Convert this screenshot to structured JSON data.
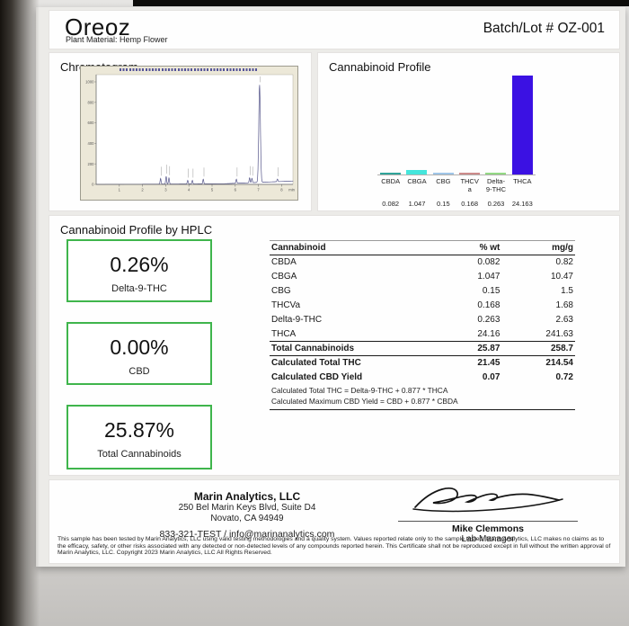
{
  "header": {
    "product": "Oreoz",
    "material": "Plant Material: Hemp Flower",
    "batch": "Batch/Lot # OZ-001"
  },
  "sections": {
    "chromatogram_title": "Chromatogram",
    "profile_title": "Cannabinoid Profile",
    "hplc_title": "Cannabinoid Profile by HPLC"
  },
  "summary_boxes": [
    {
      "value": "0.26%",
      "label": "Delta-9-THC"
    },
    {
      "value": "0.00%",
      "label": "CBD"
    },
    {
      "value": "25.87%",
      "label": "Total Cannabinoids"
    }
  ],
  "table": {
    "headers": [
      "Cannabinoid",
      "% wt",
      "mg/g"
    ],
    "rows": [
      {
        "name": "CBDA",
        "wt": "0.082",
        "mgg": "0.82"
      },
      {
        "name": "CBGA",
        "wt": "1.047",
        "mgg": "10.47"
      },
      {
        "name": "CBG",
        "wt": "0.15",
        "mgg": "1.5"
      },
      {
        "name": "THCVa",
        "wt": "0.168",
        "mgg": "1.68"
      },
      {
        "name": "Delta-9-THC",
        "wt": "0.263",
        "mgg": "2.63"
      },
      {
        "name": "THCA",
        "wt": "24.16",
        "mgg": "241.63"
      }
    ],
    "totals": [
      {
        "name": "Total Cannabinoids",
        "wt": "25.87",
        "mgg": "258.7"
      },
      {
        "name": "Calculated Total THC",
        "wt": "21.45",
        "mgg": "214.54"
      },
      {
        "name": "Calculated CBD Yield",
        "wt": "0.07",
        "mgg": "0.72"
      }
    ],
    "notes": [
      "Calculated Total THC = Delta-9-THC + 0.877 * THCA",
      "Calculated Maximum CBD Yield = CBD + 0.877 * CBDA"
    ]
  },
  "footer": {
    "lab_name": "Marin Analytics, LLC",
    "address1": "250 Bel Marin Keys Blvd, Suite D4",
    "address2": "Novato, CA 94949",
    "contact": "833-321-TEST / info@marinanalytics.com",
    "signer_name": "Mike Clemmons",
    "signer_title": "Lab Manager",
    "disclaimer": "This sample has been tested by Marin Analytics, LLC using valid testing methodologies and a quality system.  Values reported relate only to the sample tested.  Marin Analytics, LLC makes no claims as to the efficacy, safety, or other risks associated with any detected or non-detected levels of any compounds reported herein.  This Certificate shall not be reproduced except in full without the written approval of Marin Analytics, LLC.       Copyright 2023 Marin Analytics, LLC All Rights Reserved."
  },
  "chart_data": [
    {
      "type": "bar",
      "title": "Cannabinoid Profile",
      "categories": [
        "CBDA",
        "CBGA",
        "CBG",
        "THCVa",
        "Delta-9-THC",
        "THCA"
      ],
      "label_lines": [
        [
          "CBDA"
        ],
        [
          "CBGA"
        ],
        [
          "CBG"
        ],
        [
          "THCV",
          "a"
        ],
        [
          "Delta-",
          "9-THC"
        ],
        [
          "THCA"
        ]
      ],
      "values": [
        0.082,
        1.047,
        0.15,
        0.168,
        0.263,
        24.163
      ],
      "value_labels": [
        "0.082",
        "1.047",
        "0.15",
        "0.168",
        "0.263",
        "24.163"
      ],
      "bar_colors": [
        "#2fa49a",
        "#45e6dc",
        "#9fc5e8",
        "#cd8b8b",
        "#93d984",
        "#3b11e3"
      ],
      "ylim": [
        0,
        24.163
      ],
      "grid": false,
      "legend": false
    },
    {
      "type": "line",
      "title": "Chromatogram (HPLC trace)",
      "xlabel": "min",
      "x_ticks": [
        1,
        2,
        3,
        4,
        5,
        6,
        7,
        8
      ],
      "y_ticks": [
        0,
        200,
        400,
        600,
        800,
        1000
      ],
      "xlim": [
        0,
        8.5
      ],
      "ylim": [
        0,
        1000
      ],
      "peaks": [
        [
          2.78,
          55
        ],
        [
          3.02,
          75
        ],
        [
          3.14,
          60
        ],
        [
          3.95,
          35
        ],
        [
          4.15,
          35
        ],
        [
          4.62,
          45
        ],
        [
          6.05,
          40
        ],
        [
          6.62,
          48
        ],
        [
          6.72,
          42
        ],
        [
          7.05,
          950
        ],
        [
          7.82,
          25
        ]
      ],
      "baseline_drift_end": 33
    }
  ]
}
